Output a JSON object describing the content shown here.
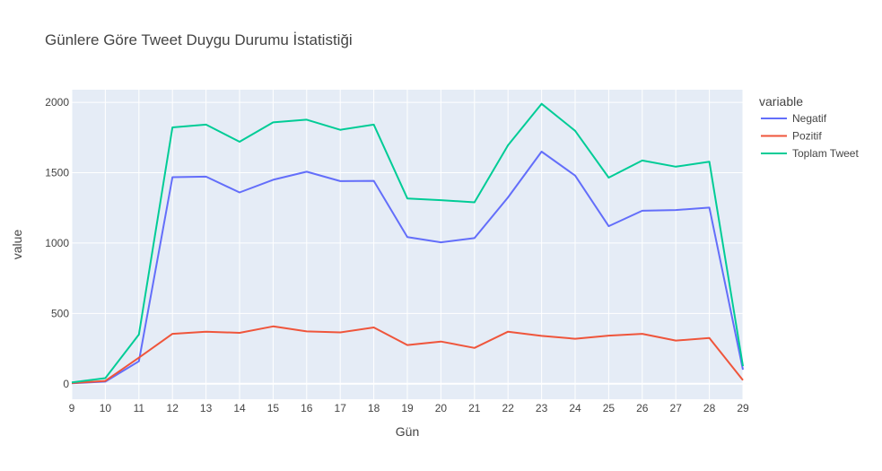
{
  "chart_data": {
    "type": "line",
    "title": "Günlere Göre Tweet Duygu Durumu İstatistiği",
    "xlabel": "Gün",
    "ylabel": "value",
    "x": [
      9,
      10,
      11,
      12,
      13,
      14,
      15,
      16,
      17,
      18,
      19,
      20,
      21,
      22,
      23,
      24,
      25,
      26,
      27,
      28,
      29
    ],
    "xlim": [
      9,
      29
    ],
    "ylim": [
      -110,
      2090
    ],
    "yticks": [
      0,
      500,
      1000,
      1500,
      2000
    ],
    "grid": true,
    "background": "#e5ecf6",
    "legend": {
      "title": "variable",
      "placement": "right"
    },
    "series": [
      {
        "name": "Negatif",
        "color": "#636efa",
        "values": [
          3,
          15,
          160,
          1468,
          1472,
          1360,
          1450,
          1507,
          1440,
          1442,
          1042,
          1005,
          1035,
          1325,
          1650,
          1480,
          1120,
          1230,
          1235,
          1252,
          100
        ]
      },
      {
        "name": "Pozitif",
        "color": "#ef553b",
        "values": [
          5,
          20,
          185,
          355,
          370,
          362,
          408,
          372,
          365,
          400,
          275,
          300,
          255,
          370,
          340,
          320,
          342,
          355,
          307,
          325,
          25
        ]
      },
      {
        "name": "Toplam Tweet",
        "color": "#00cc96",
        "values": [
          10,
          40,
          350,
          1822,
          1842,
          1720,
          1858,
          1877,
          1805,
          1842,
          1317,
          1305,
          1290,
          1695,
          1990,
          1798,
          1465,
          1587,
          1543,
          1578,
          125
        ]
      }
    ]
  }
}
